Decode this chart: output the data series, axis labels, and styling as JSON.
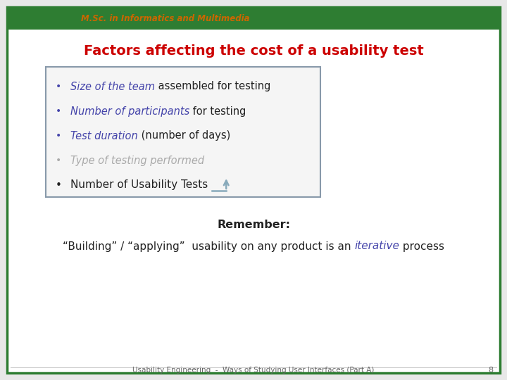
{
  "title": "Factors affecting the cost of a usability test",
  "title_color": "#cc0000",
  "background_color": "#e8e8e8",
  "slide_bg": "#ffffff",
  "border_color": "#2e7d32",
  "header_bar_color": "#2e7d32",
  "header_text": "M.Sc. in Informatics and Multimedia",
  "header_text_color": "#cc6600",
  "box_items": [
    {
      "italic_text": "Size of the team",
      "italic_color": "#4444aa",
      "rest_text": " assembled for testing",
      "rest_color": "#222222"
    },
    {
      "italic_text": "Number of participants",
      "italic_color": "#4444aa",
      "rest_text": " for testing",
      "rest_color": "#222222"
    },
    {
      "italic_text": "Test duration",
      "italic_color": "#4444aa",
      "rest_text": " (number of days)",
      "rest_color": "#222222"
    },
    {
      "italic_text": "Type of testing performed",
      "italic_color": "#aaaaaa",
      "rest_text": "",
      "rest_color": "#aaaaaa"
    }
  ],
  "box_border_color": "#8899aa",
  "box_fill_color": "#f5f5f5",
  "bullet5_text": "Number of Usability Tests",
  "bullet5_color": "#222222",
  "remember_bold": "Remember:",
  "remember_rest": "“Building” / “applying”  usability on any product is an ",
  "iterative_text": "iterative",
  "iterative_color": "#4444aa",
  "remember_end": " process",
  "remember_color": "#222222",
  "footer_text": "Usability Engineering  -  Ways of Studying User Interfaces (Part A)",
  "footer_page": "8",
  "footer_color": "#666666"
}
